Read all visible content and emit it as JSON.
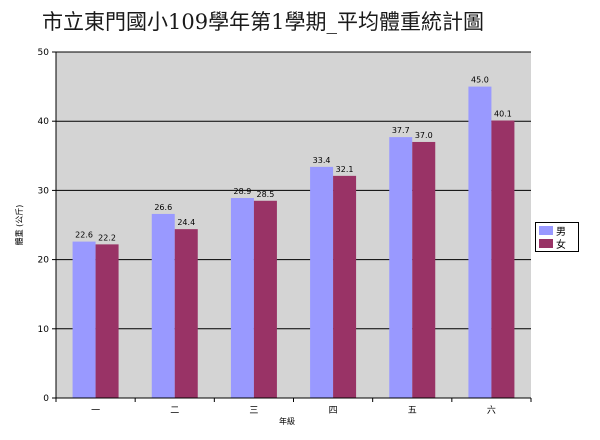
{
  "chart_data": {
    "type": "bar",
    "title": "市立東門國小109學年第1學期_平均體重統計圖",
    "xlabel": "年級",
    "ylabel": "體重 (公斤)",
    "ylim": [
      0,
      50
    ],
    "yticks": [
      0,
      10,
      20,
      30,
      40,
      50
    ],
    "grid": true,
    "legend_position": "right",
    "categories": [
      "一",
      "二",
      "三",
      "四",
      "五",
      "六"
    ],
    "series": [
      {
        "name": "男",
        "color": "#9999ff",
        "values": [
          22.6,
          26.6,
          28.9,
          33.4,
          37.7,
          45.0
        ],
        "labels": [
          "22.6",
          "26.6",
          "28.9",
          "33.4",
          "37.7",
          "45.0"
        ]
      },
      {
        "name": "女",
        "color": "#993366",
        "values": [
          22.2,
          24.4,
          28.5,
          32.1,
          37.0,
          40.1
        ],
        "labels": [
          "22.2",
          "24.4",
          "28.5",
          "32.1",
          "37.0",
          "40.1"
        ]
      }
    ]
  }
}
